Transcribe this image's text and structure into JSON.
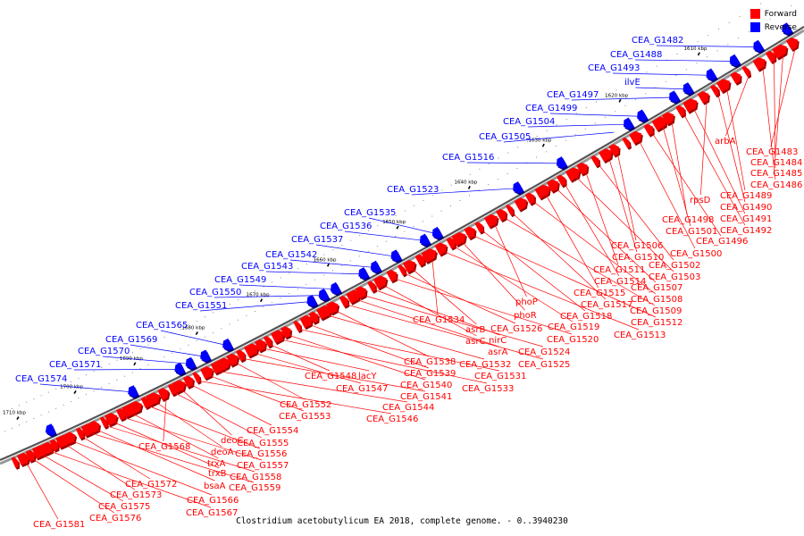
{
  "legend": {
    "forward_label": "Forward",
    "reverse_label": "Reverse",
    "forward_color": "#ff0000",
    "reverse_color": "#0000ff"
  },
  "caption": "Clostridium acetobutylicum EA 2018, complete genome. - 0..3940230",
  "ticks": [
    "1610 kbp",
    "1620 kbp",
    "1630 kbp",
    "1640 kbp",
    "1650 kbp",
    "1660 kbp",
    "1670 kbp",
    "1680 kbp",
    "1690 kbp",
    "1700 kbp",
    "1710 kbp"
  ],
  "reverse_genes": [
    "CEA_G1482",
    "CEA_G1488",
    "CEA_G1493",
    "ilvE",
    "CEA_G1497",
    "CEA_G1499",
    "CEA_G1504",
    "CEA_G1505",
    "CEA_G1516",
    "CEA_G1523",
    "CEA_G1535",
    "CEA_G1536",
    "CEA_G1537",
    "CEA_G1542",
    "CEA_G1543",
    "CEA_G1549",
    "CEA_G1550",
    "CEA_G1551",
    "CEA_G1565",
    "CEA_G1569",
    "CEA_G1570",
    "CEA_G1571",
    "CEA_G1574"
  ],
  "forward_genes": [
    "CEA_G1483",
    "CEA_G1484",
    "CEA_G1485",
    "CEA_G1486",
    "arbA",
    "CEA_G1489",
    "CEA_G1490",
    "rpsD",
    "CEA_G1491",
    "CEA_G1492",
    "CEA_G1498",
    "CEA_G1501",
    "CEA_G1496",
    "CEA_G1500",
    "CEA_G1506",
    "CEA_G1510",
    "CEA_G1502",
    "CEA_G1511",
    "CEA_G1503",
    "CEA_G1514",
    "CEA_G1507",
    "CEA_G1515",
    "CEA_G1508",
    "CEA_G1517",
    "CEA_G1509",
    "phoP",
    "CEA_G1518",
    "CEA_G1512",
    "phoR",
    "CEA_G1519",
    "CEA_G1513",
    "CEA_G1534",
    "asrB",
    "CEA_G1526",
    "CEA_G1520",
    "asrC",
    "nirC",
    "CEA_G1524",
    "asrA",
    "CEA_G1525",
    "CEA_G1538",
    "CEA_G1532",
    "CEA_G1539",
    "CEA_G1531",
    "CEA_G1540",
    "CEA_G1533",
    "CEA_G1548",
    "lacY",
    "CEA_G1547",
    "CEA_G1541",
    "CEA_G1552",
    "CEA_G1544",
    "CEA_G1553",
    "CEA_G1546",
    "CEA_G1554",
    "deoC",
    "CEA_G1555",
    "CEA_G1568",
    "deoA",
    "CEA_G1556",
    "trxA",
    "CEA_G1557",
    "trxB",
    "CEA_G1558",
    "bsaA",
    "CEA_G1559",
    "CEA_G1572",
    "CEA_G1566",
    "CEA_G1573",
    "CEA_G1567",
    "CEA_G1575",
    "CEA_G1576",
    "CEA_G1581"
  ]
}
